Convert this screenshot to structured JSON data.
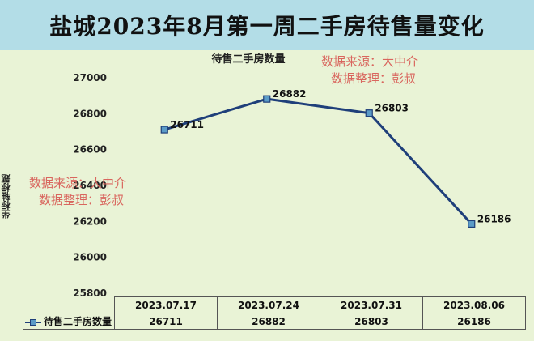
{
  "header": {
    "title": "盐城2023年8月第一周二手房待售量变化"
  },
  "watermarks": [
    {
      "line1": "数据来源：大中介",
      "line2": "数据整理：彭叔"
    },
    {
      "line1": "数据来源：大中介",
      "line2": "数据整理：彭叔"
    }
  ],
  "chart_data": {
    "type": "line",
    "title": "待售二手房数量",
    "xlabel": "",
    "ylabel": "坐标轴标题",
    "categories": [
      "2023.07.17",
      "2023.07.24",
      "2023.07.31",
      "2023.08.06"
    ],
    "series": [
      {
        "name": "待售二手房数量",
        "values": [
          26711,
          26882,
          26803,
          26186
        ]
      }
    ],
    "ylim": [
      25800,
      27000
    ],
    "yticks": [
      25800,
      26000,
      26200,
      26400,
      26600,
      26800,
      27000
    ],
    "grid": false,
    "legend": "data-table-left",
    "colors": {
      "line": "#1f3f7a",
      "marker": "#5b9bc7",
      "background": "#e9f3d6",
      "banner": "#b3dde7"
    }
  }
}
